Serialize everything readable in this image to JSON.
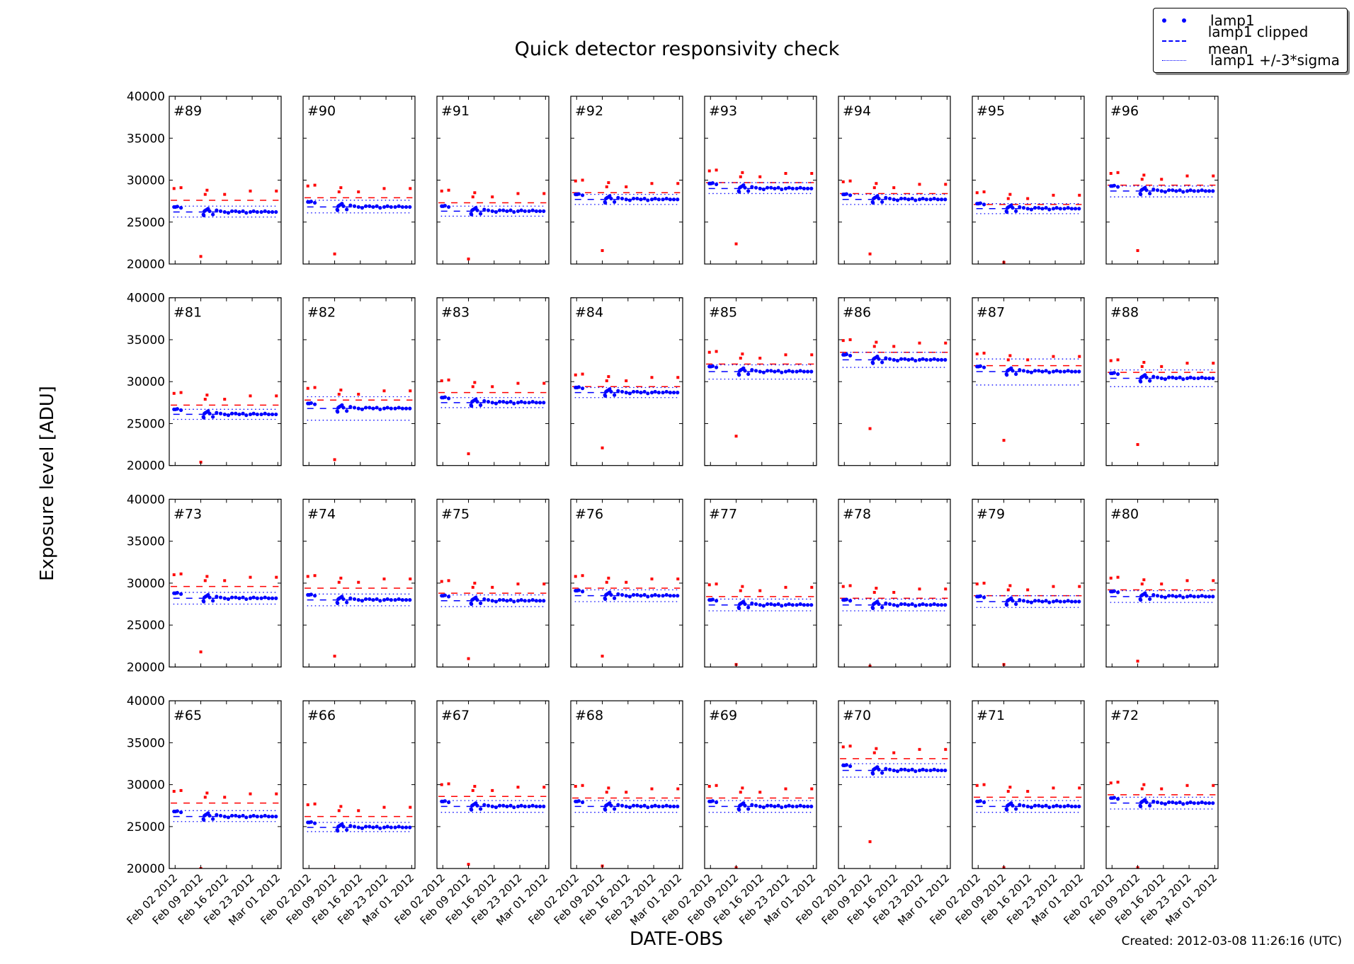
{
  "title": "Quick detector responsivity check",
  "ylabel": "Exposure level [ADU]",
  "xlabel": "DATE-OBS",
  "footer": "Created: 2012-03-08 11:26:16 (UTC)",
  "legend": {
    "items": [
      {
        "label": "lamp1",
        "symbol": "dots",
        "color": "#0000ff"
      },
      {
        "label": "lamp1 clipped mean",
        "symbol": "dashed",
        "color": "#0000ff"
      },
      {
        "label": "lamp1 +/-3*sigma",
        "symbol": "dotted",
        "color": "#0000ff"
      }
    ]
  },
  "chart_data": {
    "type": "scatter",
    "title": "Quick detector responsivity check",
    "xlabel": "DATE-OBS",
    "ylabel": "Exposure level [ADU]",
    "ylim": [
      20000,
      40000
    ],
    "yticks": [
      20000,
      25000,
      30000,
      35000,
      40000
    ],
    "x_unit": "day of Feb 2012 (Mar 01 = 30)",
    "xlim": [
      0.4,
      30.9
    ],
    "xticks": [
      2,
      9,
      16,
      23,
      30
    ],
    "xtick_labels": [
      "Feb 02 2012",
      "Feb 09 2012",
      "Feb 16 2012",
      "Feb 23 2012",
      "Mar 01 2012"
    ],
    "colors": {
      "lamp1": "#0000ff",
      "other": "#ff0000"
    },
    "blue_x": [
      1.7,
      2.1,
      2.6,
      3.6,
      9.7,
      9.8,
      10.0,
      10.3,
      10.7,
      11.0,
      11.4,
      12.3,
      13.3,
      14.4,
      15.5,
      16.5,
      17.5,
      18.5,
      19.5,
      20.5,
      21.4,
      22.5,
      23.4,
      24.4,
      25.5,
      26.5,
      27.5,
      28.5,
      29.5
    ],
    "blue_offsets_from_mean": [
      600,
      600,
      650,
      500,
      -300,
      -400,
      100,
      200,
      300,
      400,
      100,
      -300,
      200,
      100,
      0,
      -100,
      100,
      100,
      0,
      100,
      -100,
      0,
      100,
      0,
      0,
      100,
      0,
      0,
      0
    ],
    "red_x": [
      1.7,
      3.6,
      10.2,
      10.7,
      15.5,
      22.5,
      29.6
    ],
    "red_offsets_from_mean": [
      1400,
      1500,
      700,
      1200,
      700,
      1100,
      1100
    ],
    "red_outlier_x": 9.0,
    "grid": false,
    "panels": [
      {
        "label": "#89",
        "mean": 26200,
        "lo": 25600,
        "hi": 26900,
        "red_mean": 27600,
        "red_low": 20900
      },
      {
        "label": "#90",
        "mean": 26800,
        "lo": 26100,
        "hi": 27600,
        "red_mean": 27900,
        "red_low": 21200
      },
      {
        "label": "#91",
        "mean": 26300,
        "lo": 25700,
        "hi": 26900,
        "red_mean": 27300,
        "red_low": 20600
      },
      {
        "label": "#92",
        "mean": 27700,
        "lo": 27100,
        "hi": 28300,
        "red_mean": 28500,
        "red_low": 21600
      },
      {
        "label": "#93",
        "mean": 29000,
        "lo": 28400,
        "hi": 29700,
        "red_mean": 29700,
        "red_low": 22400
      },
      {
        "label": "#94",
        "mean": 27700,
        "lo": 27100,
        "hi": 28300,
        "red_mean": 28400,
        "red_low": 21200
      },
      {
        "label": "#95",
        "mean": 26600,
        "lo": 26000,
        "hi": 27200,
        "red_mean": 27100,
        "red_low": 20200
      },
      {
        "label": "#96",
        "mean": 28700,
        "lo": 28000,
        "hi": 29300,
        "red_mean": 29400,
        "red_low": 21600
      },
      {
        "label": "#81",
        "mean": 26100,
        "lo": 25500,
        "hi": 26700,
        "red_mean": 27200,
        "red_low": 20400
      },
      {
        "label": "#82",
        "mean": 26800,
        "lo": 25400,
        "hi": 28200,
        "red_mean": 27800,
        "red_low": 20700
      },
      {
        "label": "#83",
        "mean": 27500,
        "lo": 26900,
        "hi": 28100,
        "red_mean": 28700,
        "red_low": 21400
      },
      {
        "label": "#84",
        "mean": 28700,
        "lo": 28100,
        "hi": 29300,
        "red_mean": 29400,
        "red_low": 22100
      },
      {
        "label": "#85",
        "mean": 31200,
        "lo": 30300,
        "hi": 32000,
        "red_mean": 32100,
        "red_low": 23500
      },
      {
        "label": "#86",
        "mean": 32600,
        "lo": 31700,
        "hi": 33500,
        "red_mean": 33500,
        "red_low": 24400
      },
      {
        "label": "#87",
        "mean": 31200,
        "lo": 29600,
        "hi": 32700,
        "red_mean": 31900,
        "red_low": 23000
      },
      {
        "label": "#88",
        "mean": 30400,
        "lo": 29400,
        "hi": 31400,
        "red_mean": 31100,
        "red_low": 22500
      },
      {
        "label": "#73",
        "mean": 28200,
        "lo": 27500,
        "hi": 28900,
        "red_mean": 29600,
        "red_low": 21800
      },
      {
        "label": "#74",
        "mean": 28000,
        "lo": 27300,
        "hi": 28700,
        "red_mean": 29400,
        "red_low": 21300
      },
      {
        "label": "#75",
        "mean": 27900,
        "lo": 27200,
        "hi": 28600,
        "red_mean": 28800,
        "red_low": 21000
      },
      {
        "label": "#76",
        "mean": 28500,
        "lo": 27800,
        "hi": 29200,
        "red_mean": 29400,
        "red_low": 21300
      },
      {
        "label": "#77",
        "mean": 27400,
        "lo": 26700,
        "hi": 28100,
        "red_mean": 28400,
        "red_low": 20300
      },
      {
        "label": "#78",
        "mean": 27400,
        "lo": 26700,
        "hi": 28100,
        "red_mean": 28200,
        "red_low": 20100
      },
      {
        "label": "#79",
        "mean": 27800,
        "lo": 27100,
        "hi": 28500,
        "red_mean": 28500,
        "red_low": 20300
      },
      {
        "label": "#80",
        "mean": 28400,
        "lo": 27700,
        "hi": 29100,
        "red_mean": 29200,
        "red_low": 20700
      },
      {
        "label": "#65",
        "mean": 26200,
        "lo": 25600,
        "hi": 26900,
        "red_mean": 27800,
        "red_low": 20000
      },
      {
        "label": "#66",
        "mean": 24900,
        "lo": 24400,
        "hi": 25500,
        "red_mean": 26200,
        "red_low": 19900
      },
      {
        "label": "#67",
        "mean": 27400,
        "lo": 26700,
        "hi": 28100,
        "red_mean": 28600,
        "red_low": 20500
      },
      {
        "label": "#68",
        "mean": 27400,
        "lo": 26700,
        "hi": 28100,
        "red_mean": 28400,
        "red_low": 20300
      },
      {
        "label": "#69",
        "mean": 27400,
        "lo": 26700,
        "hi": 28100,
        "red_mean": 28400,
        "red_low": 20100
      },
      {
        "label": "#70",
        "mean": 31700,
        "lo": 30900,
        "hi": 32500,
        "red_mean": 33100,
        "red_low": 23200
      },
      {
        "label": "#71",
        "mean": 27400,
        "lo": 26700,
        "hi": 28100,
        "red_mean": 28500,
        "red_low": 20100
      },
      {
        "label": "#72",
        "mean": 27800,
        "lo": 27100,
        "hi": 28500,
        "red_mean": 28800,
        "red_low": 20100
      }
    ]
  }
}
